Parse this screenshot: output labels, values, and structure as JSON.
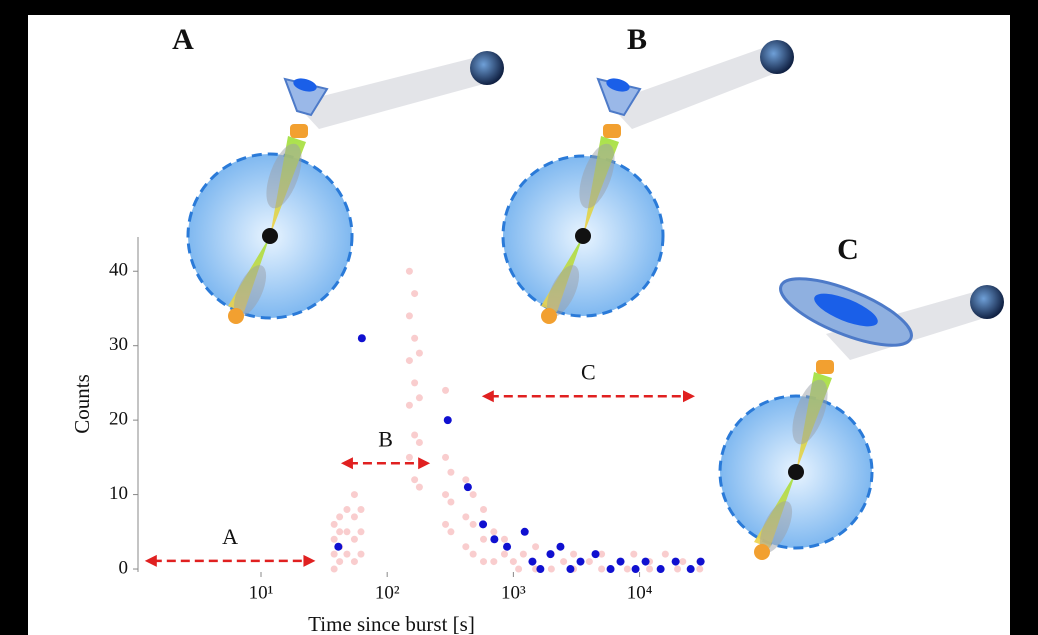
{
  "chart_data": {
    "type": "scatter",
    "panels": [
      "A",
      "B",
      "C"
    ],
    "x_label": "Time since burst [s]",
    "y_label": "Counts",
    "log_x": true,
    "xlim": [
      1.06,
      33000
    ],
    "ylim": [
      -0.4,
      44.6
    ],
    "xticks": [
      {
        "value": 10,
        "label": "10¹"
      },
      {
        "value": 100,
        "label": "10²"
      },
      {
        "value": 1000,
        "label": "10³"
      },
      {
        "value": 10000,
        "label": "10⁴"
      }
    ],
    "yticks": [
      0,
      10,
      20,
      30,
      40
    ],
    "annotations": [
      {
        "text": "A",
        "x": [
          1.2,
          27
        ],
        "y": 1.1
      },
      {
        "text": "B",
        "x": [
          43,
          219
        ],
        "y": 14.2
      },
      {
        "text": "C",
        "x": [
          562,
          27500
        ],
        "y": 23.2
      }
    ],
    "series": [
      {
        "color": "#e8393a",
        "x": [
          38,
          38,
          38,
          38,
          42,
          42,
          42,
          42,
          48,
          48,
          48,
          55,
          55,
          55,
          55,
          62,
          62,
          62,
          150,
          150,
          150,
          150,
          150,
          165,
          165,
          165,
          165,
          165,
          180,
          180,
          180,
          180,
          290,
          290,
          290,
          290,
          320,
          320,
          320,
          420,
          420,
          420,
          480,
          480,
          480,
          580,
          580,
          580,
          700,
          700,
          850,
          850,
          1000,
          1200,
          1500,
          2000,
          2500,
          3000,
          4000,
          5000,
          7000,
          9000,
          12000,
          16000,
          22000,
          30000,
          1100,
          1500,
          2000,
          3000,
          5000,
          8000,
          12000,
          20000,
          30000
        ],
        "values": [
          0,
          2,
          4,
          6,
          1,
          3,
          5,
          7,
          2,
          5,
          8,
          1,
          4,
          7,
          10,
          2,
          5,
          8,
          15,
          22,
          28,
          34,
          40,
          12,
          18,
          25,
          31,
          37,
          11,
          17,
          23,
          29,
          6,
          10,
          15,
          24,
          5,
          9,
          13,
          3,
          7,
          12,
          2,
          6,
          10,
          1,
          4,
          8,
          1,
          5,
          2,
          4,
          1,
          2,
          3,
          2,
          1,
          2,
          1,
          2,
          1,
          2,
          1,
          2,
          1,
          1,
          0,
          0,
          0,
          0,
          0,
          0,
          0,
          0,
          0
        ],
        "opacity": 0.25
      },
      {
        "color": "#1010d0",
        "x": [
          41,
          63,
          302,
          436,
          575,
          707,
          891,
          1230,
          1416,
          1637,
          1967,
          2361,
          2833,
          3404,
          4477,
          5891,
          7066,
          9296,
          11160,
          14690,
          19320,
          25410,
          30480
        ],
        "values": [
          3,
          31,
          20,
          11,
          6,
          4,
          3,
          5,
          1,
          0,
          2,
          3,
          0,
          1,
          2,
          0,
          1,
          0,
          1,
          0,
          1,
          0,
          1
        ],
        "opacity": 1
      }
    ]
  }
}
